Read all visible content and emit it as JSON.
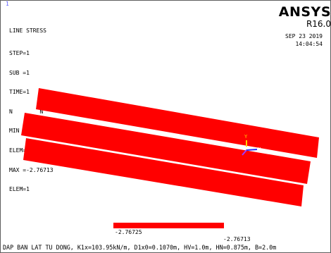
{
  "window_number": "1",
  "info_lines": [
    "LINE STRESS",
    "STEP=1",
    "SUB =1",
    "TIME=1",
    "N        N",
    "MIN =-2.76725",
    "ELEM=3",
    "MAX =-2.76713",
    "ELEM=1"
  ],
  "brand": {
    "name": "ANSYS",
    "version": "R16.0"
  },
  "datetime": {
    "date": "SEP 23 2019",
    "time": "14:04:54"
  },
  "triad": {
    "y_label": "Y",
    "x_label": "X"
  },
  "legend": {
    "min_label": "-2.76725",
    "max_label": "-2.76713",
    "color": "#ff0000"
  },
  "caption": "DAP BAN LAT TU DONG, K1x=103.95kN/m, D1x0=0.1070m, HV=1.0m, HN=0.875m, B=2.0m",
  "colors": {
    "element_fill": "#ff0000",
    "frame": "#5f5f5f",
    "window_number": "#5a5aff"
  }
}
